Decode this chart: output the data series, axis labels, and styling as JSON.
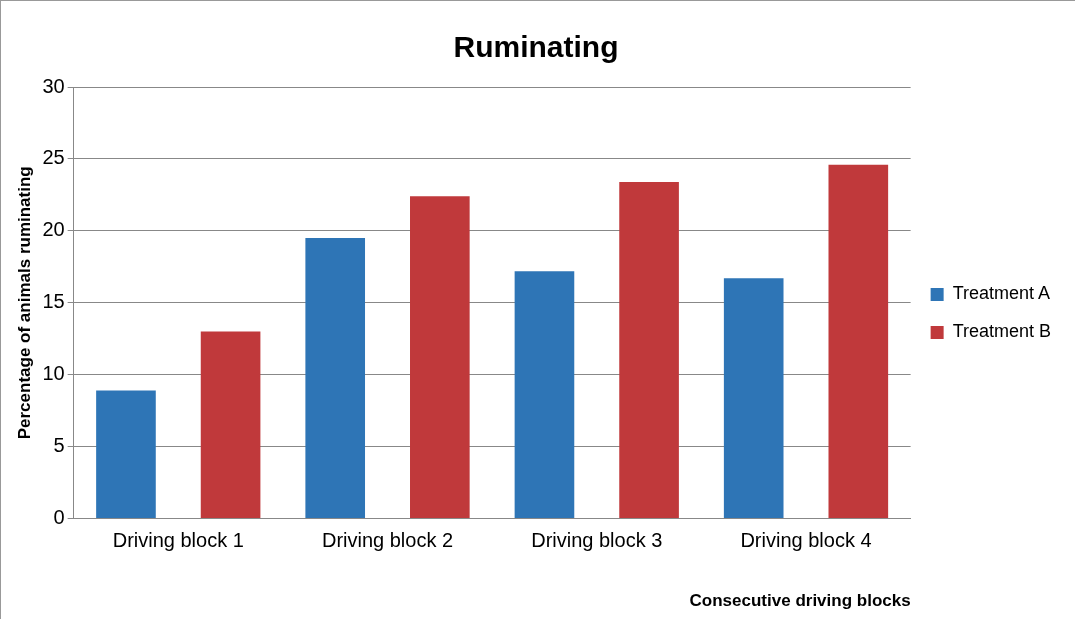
{
  "chart_data": {
    "type": "bar",
    "title": "Ruminating",
    "xlabel": "Consecutive driving blocks",
    "ylabel": "Percentage of animals ruminating",
    "categories": [
      "Driving block 1",
      "Driving block 2",
      "Driving block 3",
      "Driving block 4"
    ],
    "series": [
      {
        "name": "Treatment A",
        "color": "#2e75b6",
        "values": [
          8.9,
          19.5,
          17.2,
          16.7
        ]
      },
      {
        "name": "Treatment B",
        "color": "#c0393b",
        "values": [
          13.0,
          22.4,
          23.4,
          24.6
        ]
      }
    ],
    "ylim": [
      0,
      30
    ],
    "yticks": [
      0,
      5,
      10,
      15,
      20,
      25,
      30
    ],
    "grid": "y",
    "legend": "right"
  }
}
